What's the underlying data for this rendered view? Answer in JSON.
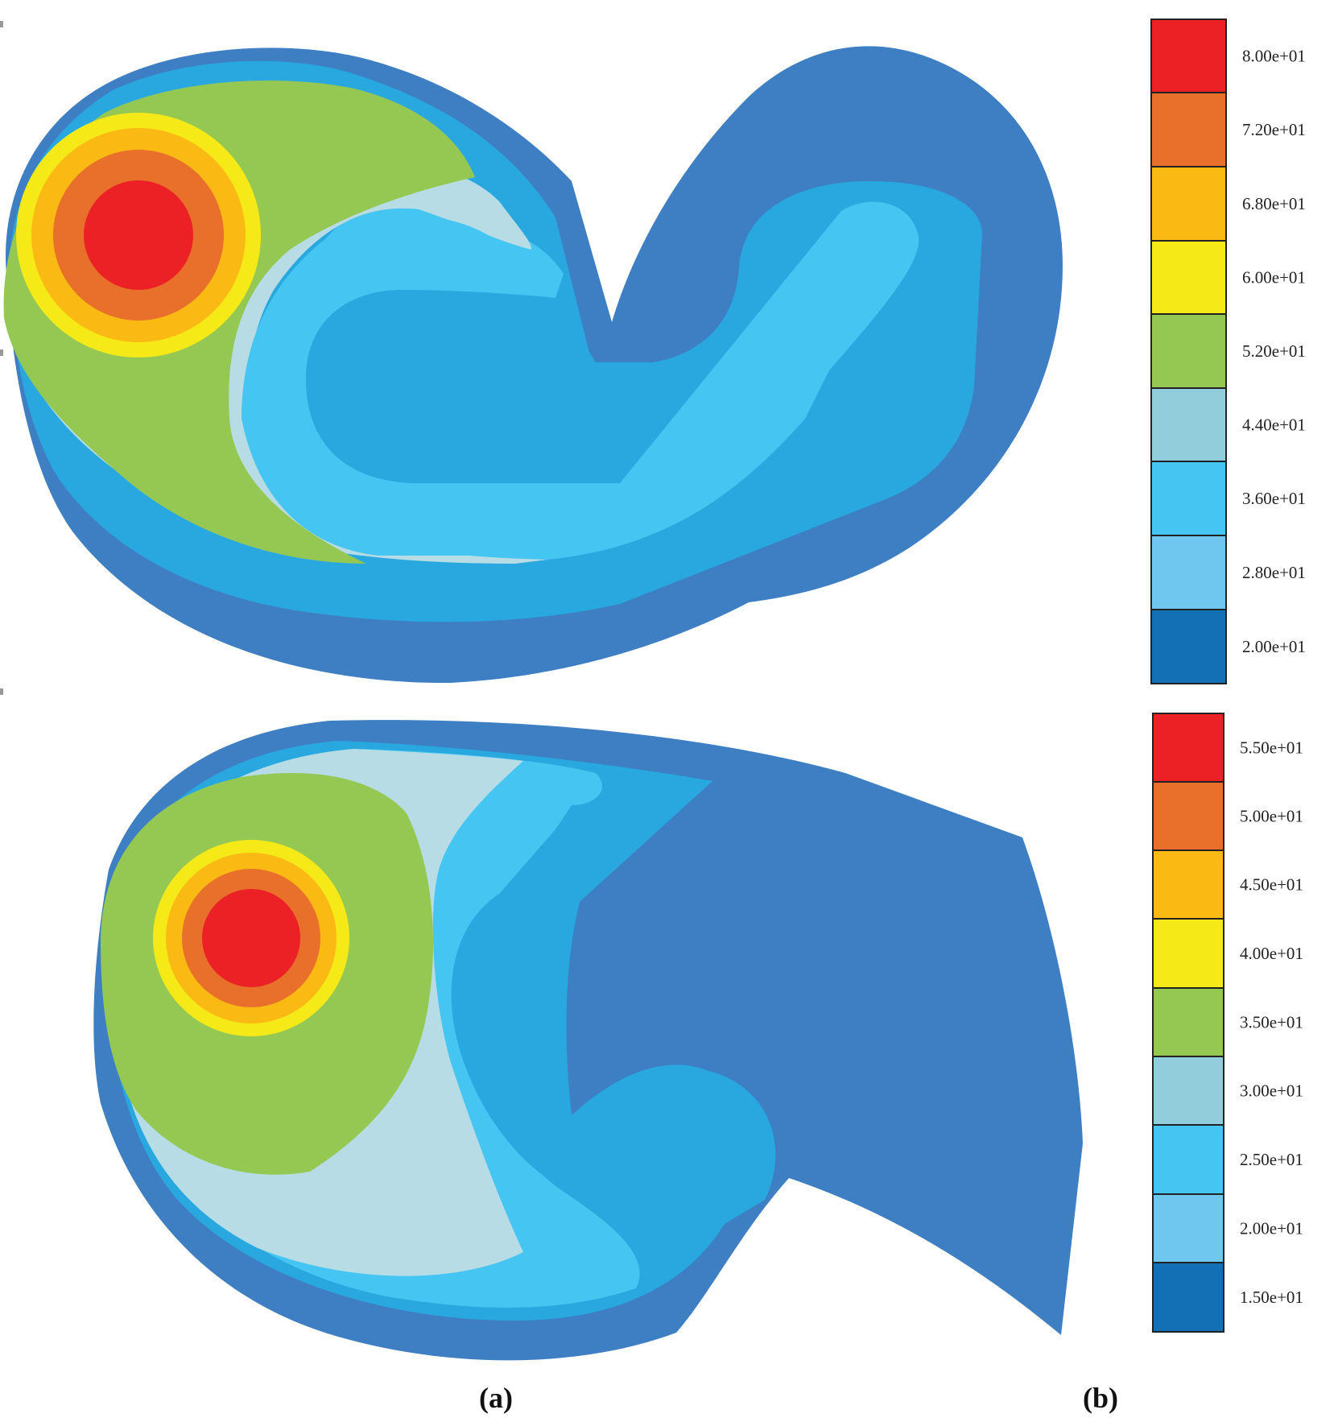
{
  "panels": [
    {
      "id": "a",
      "label": "(a)"
    },
    {
      "id": "b",
      "label": "(b)"
    }
  ],
  "chart_data": [
    {
      "type": "heatmap",
      "title": "",
      "legend": {
        "placement": "right",
        "levels": [
          {
            "label": "8.00e+01",
            "value": 80,
            "color": "#EC2126"
          },
          {
            "label": "7.20e+01",
            "value": 72,
            "color": "#E8702A"
          },
          {
            "label": "6.80e+01",
            "value": 68,
            "color": "#FBB913"
          },
          {
            "label": "6.00e+01",
            "value": 60,
            "color": "#F5E918"
          },
          {
            "label": "5.20e+01",
            "value": 52,
            "color": "#95C853"
          },
          {
            "label": "4.40e+01",
            "value": 44,
            "color": "#92CDDC"
          },
          {
            "label": "3.60e+01",
            "value": 36,
            "color": "#45C5F1"
          },
          {
            "label": "2.80e+01",
            "value": 28,
            "color": "#6FC7EF"
          },
          {
            "label": "2.00e+01",
            "value": 20,
            "color": "#1470B5"
          }
        ]
      }
    },
    {
      "type": "heatmap",
      "title": "",
      "legend": {
        "placement": "right",
        "levels": [
          {
            "label": "5.50e+01",
            "value": 55,
            "color": "#EC2126"
          },
          {
            "label": "5.00e+01",
            "value": 50,
            "color": "#E8702A"
          },
          {
            "label": "4.50e+01",
            "value": 45,
            "color": "#FBB913"
          },
          {
            "label": "4.00e+01",
            "value": 40,
            "color": "#F5E918"
          },
          {
            "label": "3.50e+01",
            "value": 35,
            "color": "#95C853"
          },
          {
            "label": "3.00e+01",
            "value": 30,
            "color": "#92CDDC"
          },
          {
            "label": "2.50e+01",
            "value": 25,
            "color": "#45C5F1"
          },
          {
            "label": "2.00e+01",
            "value": 20,
            "color": "#6FC7EF"
          },
          {
            "label": "1.50e+01",
            "value": 15,
            "color": "#1470B5"
          }
        ]
      }
    }
  ],
  "field_colors": {
    "outer": "#3E7EC2",
    "band": "#29A8E0",
    "light_blue": "#45C5F1",
    "pale": "#B8DCE6",
    "green": "#95C853",
    "yellow": "#F5E918",
    "amber": "#FBB913",
    "orange": "#E8702A",
    "red": "#EC2126"
  }
}
